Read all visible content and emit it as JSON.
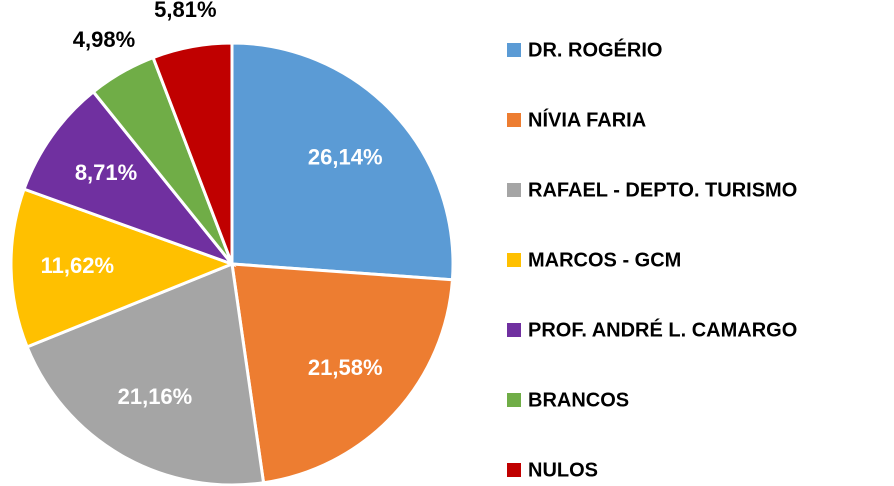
{
  "chart_data": {
    "type": "pie",
    "categories": [
      "DR. ROGÉRIO",
      "NÍVIA FARIA",
      "RAFAEL - DEPTO. TURISMO",
      "MARCOS - GCM",
      "PROF. ANDRÉ L. CAMARGO",
      "BRANCOS",
      "NULOS"
    ],
    "values": [
      26.14,
      21.58,
      21.16,
      11.62,
      8.71,
      4.98,
      5.81
    ],
    "value_labels": [
      "26,14%",
      "21,58%",
      "21,16%",
      "11,62%",
      "8,71%",
      "4,98%",
      "5,81%"
    ],
    "colors": [
      "#5b9bd5",
      "#ed7d31",
      "#a5a5a5",
      "#ffc000",
      "#7030a0",
      "#70ad47",
      "#c00000"
    ],
    "legend": "right"
  }
}
